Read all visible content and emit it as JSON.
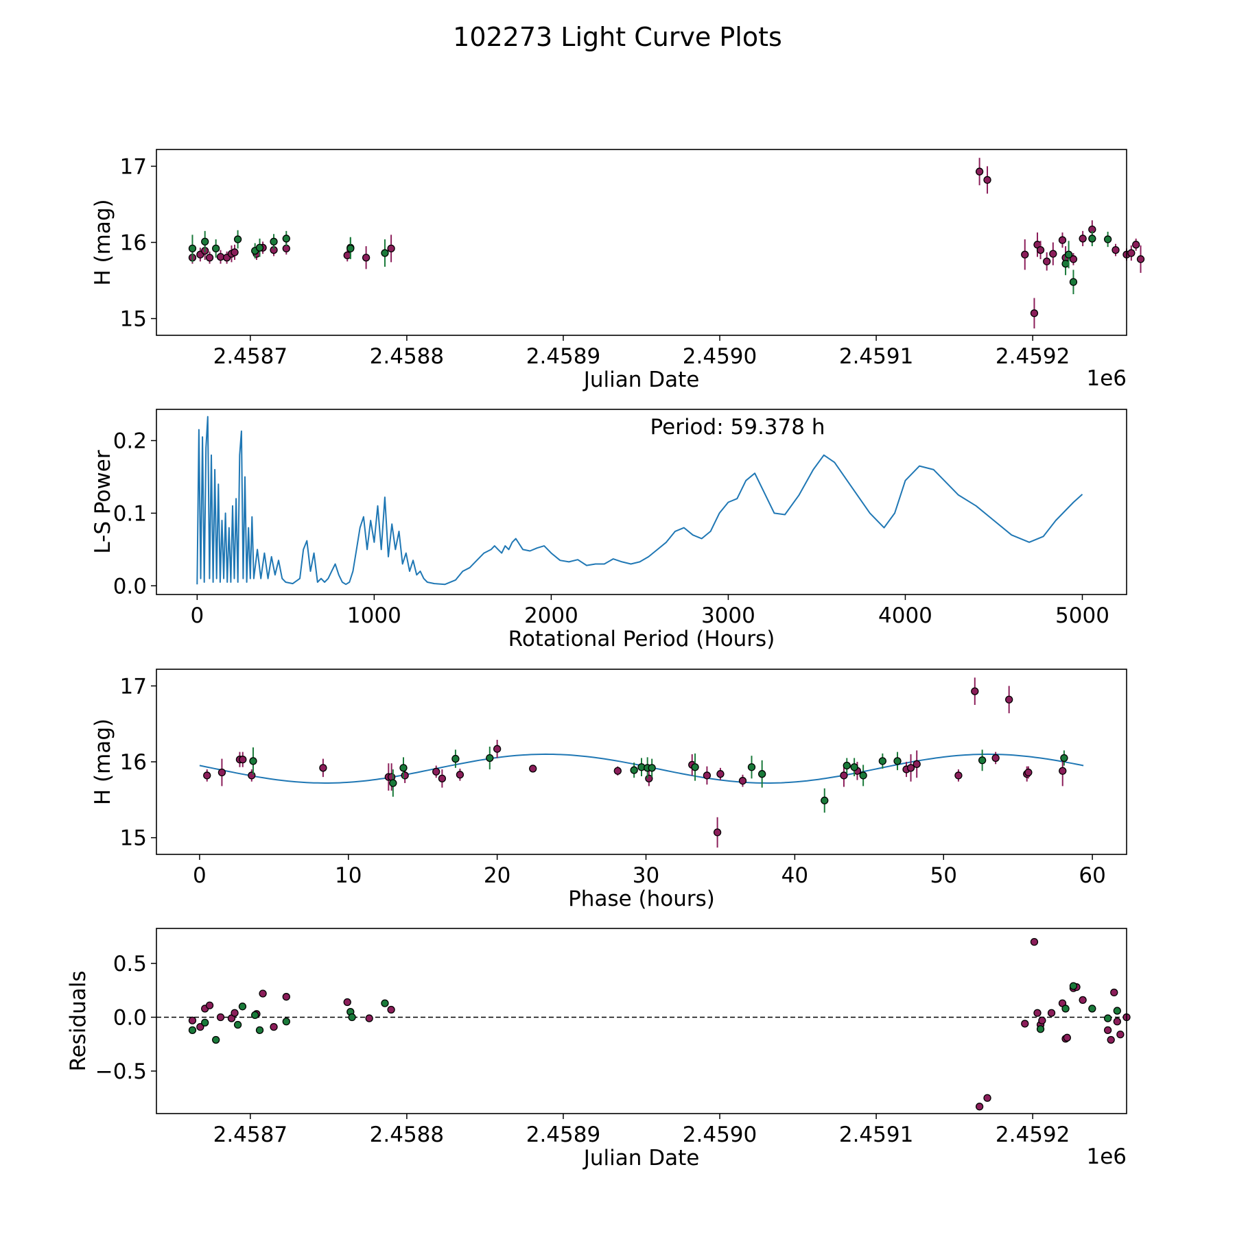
{
  "figure_title": "102273 Light Curve Plots",
  "colors": {
    "series_a": "#8b1e5a",
    "series_b": "#1a7a3a",
    "fit": "#1f77b4",
    "frame": "#000000"
  },
  "chart_data": [
    {
      "type": "scatter",
      "name": "light-curve",
      "xlabel": "Julian Date",
      "ylabel": "H (mag)",
      "x_offset_label": "1e6",
      "xlim": [
        2.45864,
        2.45926
      ],
      "ylim": [
        14.78,
        17.22
      ],
      "xticks": [
        2.4587,
        2.4588,
        2.4589,
        2.459,
        2.4591,
        2.4592
      ],
      "xtick_labels": [
        "2.4587",
        "2.4588",
        "2.4589",
        "2.4590",
        "2.4591",
        "2.4592"
      ],
      "yticks": [
        15,
        16,
        17
      ],
      "ytick_labels": [
        "15",
        "16",
        "17"
      ],
      "series": [
        {
          "name": "filter-1",
          "color": "#8b1e5a",
          "x": [
            2.458663,
            2.458668,
            2.458671,
            2.458674,
            2.458681,
            2.458685,
            2.458688,
            2.45869,
            2.458704,
            2.458708,
            2.458715,
            2.458723,
            2.458762,
            2.458774,
            2.45879,
            2.459166,
            2.459171,
            2.459195,
            2.459201,
            2.459203,
            2.459205,
            2.459209,
            2.459213,
            2.459219,
            2.459221,
            2.459226,
            2.459232,
            2.459238,
            2.459253,
            2.45926,
            2.459263,
            2.459266,
            2.459269
          ],
          "y": [
            15.8,
            15.84,
            15.89,
            15.8,
            15.81,
            15.8,
            15.85,
            15.87,
            15.85,
            15.93,
            15.9,
            15.92,
            15.83,
            15.8,
            15.92,
            16.93,
            16.82,
            15.84,
            15.07,
            15.97,
            15.9,
            15.75,
            15.85,
            16.03,
            15.8,
            15.78,
            16.05,
            16.17,
            15.9,
            15.84,
            15.86,
            15.97,
            15.78
          ],
          "yerr": [
            0.08,
            0.09,
            0.12,
            0.08,
            0.09,
            0.08,
            0.11,
            0.1,
            0.08,
            0.08,
            0.08,
            0.08,
            0.08,
            0.15,
            0.18,
            0.18,
            0.18,
            0.2,
            0.2,
            0.16,
            0.12,
            0.12,
            0.15,
            0.1,
            0.15,
            0.08,
            0.1,
            0.12,
            0.08,
            0.08,
            0.1,
            0.08,
            0.18
          ]
        },
        {
          "name": "filter-2",
          "color": "#1a7a3a",
          "x": [
            2.458663,
            2.458671,
            2.458678,
            2.458692,
            2.458703,
            2.458706,
            2.458715,
            2.458723,
            2.458764,
            2.458764,
            2.458786,
            2.459221,
            2.459223,
            2.459226,
            2.459238,
            2.459248
          ],
          "y": [
            15.92,
            16.01,
            15.92,
            16.04,
            15.89,
            15.93,
            16.01,
            16.05,
            15.93,
            15.92,
            15.86,
            15.72,
            15.84,
            15.48,
            16.05,
            16.04
          ],
          "yerr": [
            0.18,
            0.14,
            0.12,
            0.12,
            0.1,
            0.12,
            0.1,
            0.1,
            0.14,
            0.14,
            0.18,
            0.15,
            0.18,
            0.16,
            0.1,
            0.1
          ]
        }
      ]
    },
    {
      "type": "line",
      "name": "periodogram",
      "xlabel": "Rotational Period (Hours)",
      "ylabel": "L-S Power",
      "annotation": "Period: 59.378 h",
      "xlim": [
        -230,
        5250
      ],
      "ylim": [
        -0.012,
        0.243
      ],
      "xticks": [
        0,
        1000,
        2000,
        3000,
        4000,
        5000
      ],
      "xtick_labels": [
        "0",
        "1000",
        "2000",
        "3000",
        "4000",
        "5000"
      ],
      "yticks": [
        0.0,
        0.1,
        0.2
      ],
      "ytick_labels": [
        "0.0",
        "0.1",
        "0.2"
      ],
      "series": [
        {
          "name": "ls-power",
          "color": "#1f77b4",
          "x": [
            0,
            10,
            20,
            30,
            40,
            50,
            60,
            70,
            80,
            90,
            100,
            110,
            120,
            130,
            140,
            150,
            160,
            170,
            180,
            190,
            200,
            210,
            220,
            230,
            240,
            250,
            260,
            270,
            280,
            290,
            300,
            310,
            320,
            340,
            360,
            380,
            400,
            420,
            440,
            460,
            480,
            500,
            540,
            580,
            600,
            620,
            640,
            660,
            680,
            700,
            720,
            740,
            760,
            780,
            800,
            820,
            840,
            860,
            880,
            900,
            920,
            940,
            960,
            980,
            1000,
            1020,
            1040,
            1060,
            1080,
            1100,
            1120,
            1140,
            1160,
            1180,
            1200,
            1220,
            1240,
            1260,
            1280,
            1300,
            1340,
            1400,
            1460,
            1500,
            1540,
            1580,
            1620,
            1660,
            1680,
            1700,
            1720,
            1740,
            1760,
            1780,
            1800,
            1840,
            1880,
            1920,
            1960,
            2000,
            2050,
            2100,
            2150,
            2200,
            2250,
            2300,
            2350,
            2400,
            2450,
            2500,
            2550,
            2600,
            2650,
            2700,
            2750,
            2800,
            2850,
            2900,
            2950,
            3000,
            3050,
            3100,
            3150,
            3200,
            3260,
            3320,
            3400,
            3480,
            3540,
            3600,
            3700,
            3800,
            3880,
            3940,
            4000,
            4080,
            4160,
            4240,
            4300,
            4400,
            4500,
            4600,
            4700,
            4780,
            4850,
            4950,
            5000
          ],
          "y": [
            0.002,
            0.215,
            0.01,
            0.205,
            0.005,
            0.19,
            0.233,
            0.01,
            0.18,
            0.005,
            0.16,
            0.01,
            0.14,
            0.005,
            0.09,
            0.01,
            0.1,
            0.005,
            0.08,
            0.005,
            0.11,
            0.01,
            0.12,
            0.005,
            0.18,
            0.213,
            0.01,
            0.15,
            0.005,
            0.08,
            0.01,
            0.095,
            0.01,
            0.05,
            0.01,
            0.045,
            0.01,
            0.04,
            0.015,
            0.035,
            0.01,
            0.005,
            0.003,
            0.01,
            0.05,
            0.062,
            0.02,
            0.045,
            0.005,
            0.01,
            0.005,
            0.01,
            0.02,
            0.03,
            0.015,
            0.005,
            0.002,
            0.005,
            0.02,
            0.05,
            0.08,
            0.095,
            0.05,
            0.09,
            0.06,
            0.11,
            0.05,
            0.122,
            0.04,
            0.085,
            0.05,
            0.075,
            0.03,
            0.045,
            0.02,
            0.035,
            0.015,
            0.02,
            0.01,
            0.005,
            0.003,
            0.002,
            0.008,
            0.02,
            0.025,
            0.035,
            0.045,
            0.05,
            0.055,
            0.05,
            0.045,
            0.055,
            0.05,
            0.06,
            0.065,
            0.05,
            0.048,
            0.052,
            0.055,
            0.045,
            0.035,
            0.033,
            0.036,
            0.028,
            0.03,
            0.03,
            0.037,
            0.033,
            0.03,
            0.033,
            0.04,
            0.05,
            0.06,
            0.075,
            0.08,
            0.07,
            0.065,
            0.075,
            0.1,
            0.115,
            0.12,
            0.145,
            0.155,
            0.13,
            0.1,
            0.098,
            0.125,
            0.16,
            0.18,
            0.17,
            0.135,
            0.1,
            0.08,
            0.1,
            0.145,
            0.165,
            0.16,
            0.14,
            0.125,
            0.11,
            0.09,
            0.07,
            0.06,
            0.068,
            0.09,
            0.115,
            0.126
          ]
        }
      ]
    },
    {
      "type": "scatter",
      "name": "phase-fold",
      "xlabel": "Phase (hours)",
      "ylabel": "H (mag)",
      "xlim": [
        -2.9,
        62.3
      ],
      "ylim": [
        14.78,
        17.22
      ],
      "xticks": [
        0,
        10,
        20,
        30,
        40,
        50,
        60
      ],
      "xtick_labels": [
        "0",
        "10",
        "20",
        "30",
        "40",
        "50",
        "60"
      ],
      "yticks": [
        15,
        16,
        17
      ],
      "ytick_labels": [
        "15",
        "16",
        "17"
      ],
      "fit": {
        "mean": 15.91,
        "amplitude": 0.19,
        "period": 29.69,
        "peak_phase": 23.3,
        "x_range": [
          0,
          59.4
        ]
      },
      "series": [
        {
          "name": "filter-1",
          "color": "#8b1e5a",
          "x": [
            0.5,
            1.5,
            2.7,
            3.5,
            8.3,
            12.7,
            13.8,
            15.9,
            16.3,
            17.5,
            20.0,
            22.4,
            28.1,
            30.2,
            33.1,
            34.1,
            34.8,
            35.0,
            36.5,
            43.3,
            44.2,
            47.5,
            47.8,
            48.2,
            51.0,
            52.1,
            53.5,
            54.4,
            55.6,
            55.7,
            58.0,
            2.9,
            12.9
          ],
          "y": [
            15.82,
            15.86,
            16.03,
            15.82,
            15.92,
            15.8,
            15.82,
            15.87,
            15.78,
            15.83,
            16.17,
            15.91,
            15.88,
            15.78,
            15.96,
            15.82,
            15.07,
            15.84,
            15.75,
            15.82,
            15.88,
            15.9,
            15.92,
            15.97,
            15.82,
            16.93,
            16.05,
            16.82,
            15.84,
            15.86,
            15.88,
            16.03,
            15.8
          ],
          "yerr": [
            0.08,
            0.18,
            0.1,
            0.08,
            0.12,
            0.18,
            0.1,
            0.08,
            0.12,
            0.08,
            0.12,
            0.04,
            0.06,
            0.1,
            0.14,
            0.12,
            0.2,
            0.08,
            0.08,
            0.15,
            0.12,
            0.1,
            0.18,
            0.18,
            0.08,
            0.18,
            0.08,
            0.18,
            0.1,
            0.08,
            0.2,
            0.1,
            0.18
          ]
        },
        {
          "name": "filter-2",
          "color": "#1a7a3a",
          "x": [
            3.6,
            13.7,
            13.0,
            17.2,
            19.5,
            29.2,
            29.7,
            30.1,
            30.4,
            33.3,
            37.1,
            37.8,
            42.0,
            43.5,
            44.6,
            45.9,
            46.9,
            52.6,
            58.1,
            44.0
          ],
          "y": [
            16.01,
            15.92,
            15.72,
            16.04,
            16.05,
            15.89,
            15.93,
            15.92,
            15.92,
            15.93,
            15.93,
            15.84,
            15.49,
            15.95,
            15.82,
            16.01,
            16.01,
            16.02,
            16.05,
            15.93
          ],
          "yerr": [
            0.18,
            0.14,
            0.18,
            0.12,
            0.15,
            0.1,
            0.12,
            0.14,
            0.12,
            0.18,
            0.15,
            0.18,
            0.16,
            0.1,
            0.14,
            0.1,
            0.12,
            0.14,
            0.1,
            0.12
          ]
        }
      ]
    },
    {
      "type": "scatter",
      "name": "residuals",
      "xlabel": "Julian Date",
      "ylabel": "Residuals",
      "x_offset_label": "1e6",
      "xlim": [
        2.45864,
        2.45926
      ],
      "ylim": [
        -0.895,
        0.825
      ],
      "xticks": [
        2.4587,
        2.4588,
        2.4589,
        2.459,
        2.4591,
        2.4592
      ],
      "xtick_labels": [
        "2.4587",
        "2.4588",
        "2.4589",
        "2.4590",
        "2.4591",
        "2.4592"
      ],
      "yticks": [
        -0.5,
        0.0,
        0.5
      ],
      "ytick_labels": [
        "−0.5",
        "0.0",
        "0.5"
      ],
      "zero_line": 0.0,
      "series": [
        {
          "name": "filter-1",
          "color": "#8b1e5a",
          "x": [
            2.458663,
            2.458668,
            2.458671,
            2.458674,
            2.458681,
            2.458688,
            2.45869,
            2.458704,
            2.458708,
            2.458715,
            2.458723,
            2.458762,
            2.458776,
            2.45879,
            2.459166,
            2.459171,
            2.459195,
            2.459201,
            2.459203,
            2.459205,
            2.459206,
            2.459212,
            2.459219,
            2.459221,
            2.459222,
            2.459226,
            2.459228,
            2.459232,
            2.459248,
            2.45925,
            2.459252,
            2.459254,
            2.459256,
            2.45926
          ],
          "y": [
            -0.03,
            -0.09,
            0.08,
            0.11,
            0.0,
            -0.01,
            0.04,
            0.03,
            0.22,
            -0.09,
            0.19,
            0.14,
            -0.01,
            0.07,
            -0.83,
            -0.75,
            -0.06,
            0.7,
            0.04,
            -0.07,
            -0.03,
            0.04,
            0.13,
            -0.2,
            -0.19,
            0.27,
            0.28,
            0.16,
            -0.12,
            -0.21,
            0.23,
            -0.04,
            -0.16,
            0.0
          ]
        },
        {
          "name": "filter-2",
          "color": "#1a7a3a",
          "x": [
            2.458663,
            2.458671,
            2.458678,
            2.458692,
            2.458695,
            2.458703,
            2.458706,
            2.458723,
            2.458764,
            2.458765,
            2.458786,
            2.459221,
            2.459226,
            2.459238,
            2.459248,
            2.459254,
            2.459205
          ],
          "y": [
            -0.12,
            -0.05,
            -0.21,
            -0.07,
            0.1,
            0.02,
            -0.12,
            -0.04,
            0.05,
            0.0,
            0.13,
            0.08,
            0.29,
            0.08,
            -0.01,
            0.06,
            -0.11
          ]
        }
      ]
    }
  ]
}
